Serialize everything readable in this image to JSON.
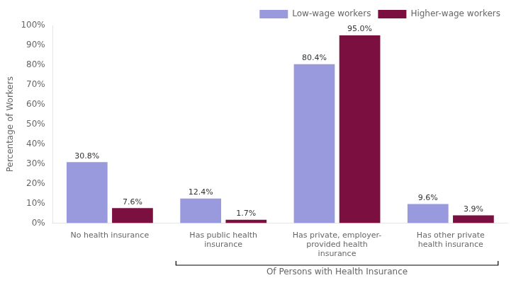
{
  "chart_data": {
    "type": "bar",
    "categories": [
      "No health insurance",
      "Has public health\ninsurance",
      "Has private, employer-\nprovided health\ninsurance",
      "Has other private\nhealth insurance"
    ],
    "series": [
      {
        "name": "Low-wage workers",
        "color": "#9999dd",
        "values": [
          30.8,
          12.4,
          80.4,
          9.6
        ],
        "value_labels": [
          "30.8%",
          "12.4%",
          "80.4%",
          "9.6%"
        ]
      },
      {
        "name": "Higher-wage workers",
        "color": "#7b1040",
        "values": [
          7.6,
          1.7,
          95.0,
          3.9
        ],
        "value_labels": [
          "7.6%",
          "1.7%",
          "95.0%",
          "3.9%"
        ]
      }
    ],
    "ylabel": "Percentage of Workers",
    "annotations": [
      "Of Persons with Health Insurance"
    ],
    "ylim": [
      0,
      100
    ],
    "yticks": [
      {
        "value": 0,
        "label": "0%"
      },
      {
        "value": 10,
        "label": "10%"
      },
      {
        "value": 20,
        "label": "20%"
      },
      {
        "value": 30,
        "label": "30%"
      },
      {
        "value": 40,
        "label": "40%"
      },
      {
        "value": 50,
        "label": "50%"
      },
      {
        "value": 60,
        "label": "60%"
      },
      {
        "value": 70,
        "label": "70%"
      },
      {
        "value": 80,
        "label": "80%"
      },
      {
        "value": 90,
        "label": "90%"
      },
      {
        "value": 100,
        "label": "100%"
      }
    ],
    "grid": false,
    "legend": "upper right",
    "data_labels": true
  }
}
